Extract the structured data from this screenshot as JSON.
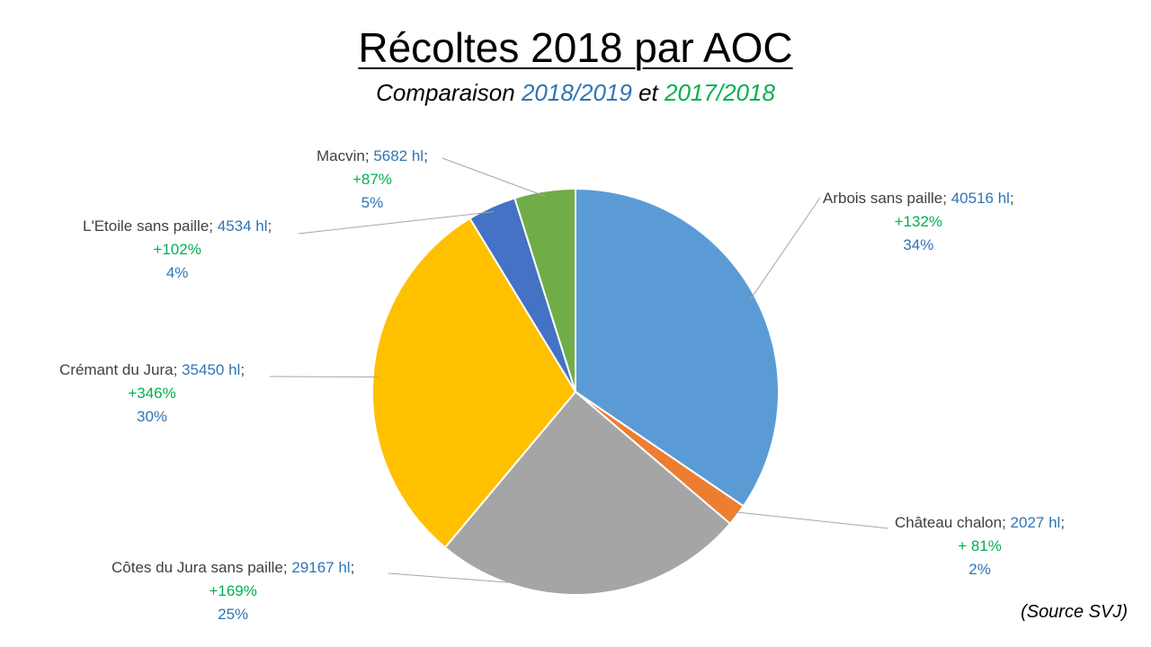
{
  "title": "Récoltes 2018 par AOC",
  "subtitle": {
    "prefix": "Comparaison ",
    "part_blue": "2018/2019",
    "middle": " et ",
    "part_green": "2017/2018"
  },
  "source": "(Source SVJ)",
  "chart_data": {
    "type": "pie",
    "slices": [
      {
        "name": "Arbois sans paille",
        "volume": "40516 hl",
        "value": 40516,
        "evolution": "+132%",
        "percent": "34%",
        "color": "#5B9BD5"
      },
      {
        "name": "Château chalon",
        "volume": "2027 hl",
        "value": 2027,
        "evolution": "+ 81%",
        "percent": "2%",
        "color": "#ED7D31"
      },
      {
        "name": "Côtes du Jura sans paille",
        "volume": "29167 hl",
        "value": 29167,
        "evolution": "+169%",
        "percent": "25%",
        "color": "#A5A5A5"
      },
      {
        "name": "Crémant du Jura",
        "volume": "35450 hl",
        "value": 35450,
        "evolution": "+346%",
        "percent": "30%",
        "color": "#FFC000"
      },
      {
        "name": "L'Etoile sans paille",
        "volume": "4534 hl",
        "value": 4534,
        "evolution": "+102%",
        "percent": "4%",
        "color": "#4472C4"
      },
      {
        "name": "Macvin",
        "volume": "5682 hl",
        "value": 5682,
        "evolution": "+87%",
        "percent": "5%",
        "color": "#70AD47"
      }
    ]
  }
}
